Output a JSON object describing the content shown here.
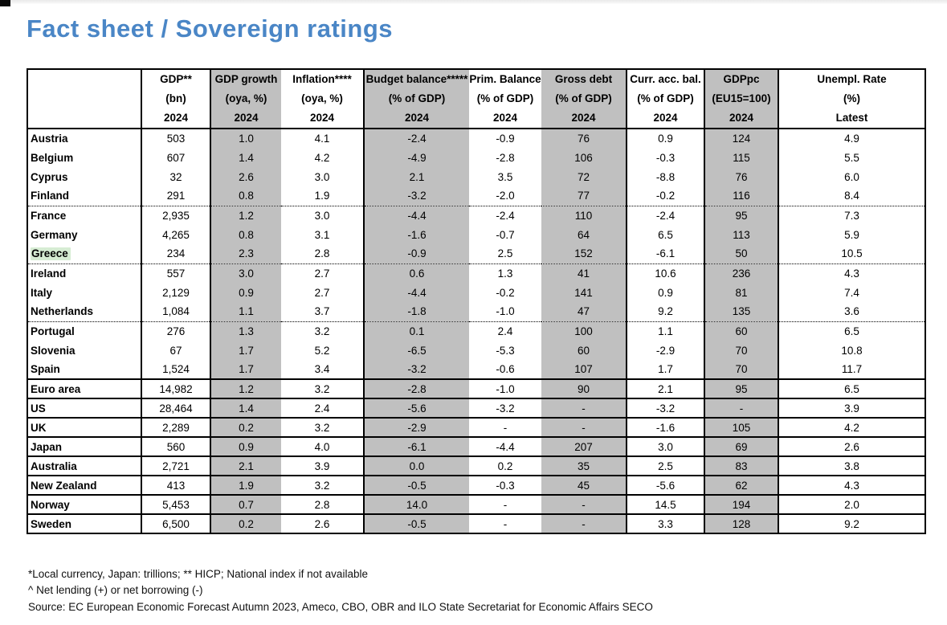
{
  "page": {
    "title": "Fact sheet / Sovereign ratings"
  },
  "colors": {
    "title_accent": "#4a86c6",
    "shaded_column": "#c0c0c0",
    "greece_highlight": "#d6ecd3"
  },
  "table": {
    "columns": [
      {
        "id": "country",
        "lines": [
          "",
          "",
          ""
        ],
        "shaded": false
      },
      {
        "id": "gdp",
        "lines": [
          "GDP**",
          "(bn)",
          "2024"
        ],
        "shaded": false
      },
      {
        "id": "gdp-growth",
        "lines": [
          "GDP growth",
          "(oya, %)",
          "2024"
        ],
        "shaded": true
      },
      {
        "id": "inflation",
        "lines": [
          "Inflation****",
          "(oya, %)",
          "2024"
        ],
        "shaded": false
      },
      {
        "id": "budget-balance",
        "lines": [
          "Budget balance*****",
          "(% of GDP)",
          "2024"
        ],
        "shaded": true
      },
      {
        "id": "prim-balance",
        "lines": [
          "Prim. Balance",
          "(% of GDP)",
          "2024"
        ],
        "shaded": false
      },
      {
        "id": "gross-debt",
        "lines": [
          "Gross debt",
          "(% of GDP)",
          "2024"
        ],
        "shaded": true
      },
      {
        "id": "curr-acc-bal",
        "lines": [
          "Curr. acc. bal.",
          "(% of GDP)",
          "2024"
        ],
        "shaded": false
      },
      {
        "id": "gdppc",
        "lines": [
          "GDPpc",
          "(EU15=100)",
          "2024"
        ],
        "shaded": true
      },
      {
        "id": "unempl-rate",
        "lines": [
          "Unempl. Rate",
          "(%)",
          "Latest"
        ],
        "shaded": false
      }
    ],
    "rows": [
      {
        "country": "Austria",
        "values": [
          "503",
          "1.0",
          "4.1",
          "-2.4",
          "-0.9",
          "76",
          "0.9",
          "124",
          "4.9"
        ],
        "bottom_border": "none",
        "highlight": false
      },
      {
        "country": "Belgium",
        "values": [
          "607",
          "1.4",
          "4.2",
          "-4.9",
          "-2.8",
          "106",
          "-0.3",
          "115",
          "5.5"
        ],
        "bottom_border": "none",
        "highlight": false
      },
      {
        "country": "Cyprus",
        "values": [
          "32",
          "2.6",
          "3.0",
          "2.1",
          "3.5",
          "72",
          "-8.8",
          "76",
          "6.0"
        ],
        "bottom_border": "none",
        "highlight": false
      },
      {
        "country": "Finland",
        "values": [
          "291",
          "0.8",
          "1.9",
          "-3.2",
          "-2.0",
          "77",
          "-0.2",
          "116",
          "8.4"
        ],
        "bottom_border": "dotted",
        "highlight": false
      },
      {
        "country": "France",
        "values": [
          "2,935",
          "1.2",
          "3.0",
          "-4.4",
          "-2.4",
          "110",
          "-2.4",
          "95",
          "7.3"
        ],
        "bottom_border": "none",
        "highlight": false
      },
      {
        "country": "Germany",
        "values": [
          "4,265",
          "0.8",
          "3.1",
          "-1.6",
          "-0.7",
          "64",
          "6.5",
          "113",
          "5.9"
        ],
        "bottom_border": "none",
        "highlight": false
      },
      {
        "country": "Greece",
        "values": [
          "234",
          "2.3",
          "2.8",
          "-0.9",
          "2.5",
          "152",
          "-6.1",
          "50",
          "10.5"
        ],
        "bottom_border": "dotted",
        "highlight": true
      },
      {
        "country": "Ireland",
        "values": [
          "557",
          "3.0",
          "2.7",
          "0.6",
          "1.3",
          "41",
          "10.6",
          "236",
          "4.3"
        ],
        "bottom_border": "none",
        "highlight": false
      },
      {
        "country": "Italy",
        "values": [
          "2,129",
          "0.9",
          "2.7",
          "-4.4",
          "-0.2",
          "141",
          "0.9",
          "81",
          "7.4"
        ],
        "bottom_border": "none",
        "highlight": false
      },
      {
        "country": "Netherlands",
        "values": [
          "1,084",
          "1.1",
          "3.7",
          "-1.8",
          "-1.0",
          "47",
          "9.2",
          "135",
          "3.6"
        ],
        "bottom_border": "dotted",
        "highlight": false
      },
      {
        "country": "Portugal",
        "values": [
          "276",
          "1.3",
          "3.2",
          "0.1",
          "2.4",
          "100",
          "1.1",
          "60",
          "6.5"
        ],
        "bottom_border": "none",
        "highlight": false
      },
      {
        "country": "Slovenia",
        "values": [
          "67",
          "1.7",
          "5.2",
          "-6.5",
          "-5.3",
          "60",
          "-2.9",
          "70",
          "10.8"
        ],
        "bottom_border": "none",
        "highlight": false
      },
      {
        "country": "Spain",
        "values": [
          "1,524",
          "1.7",
          "3.4",
          "-3.2",
          "-0.6",
          "107",
          "1.7",
          "70",
          "11.7"
        ],
        "bottom_border": "solid",
        "highlight": false
      },
      {
        "country": "Euro area",
        "values": [
          "14,982",
          "1.2",
          "3.2",
          "-2.8",
          "-1.0",
          "90",
          "2.1",
          "95",
          "6.5"
        ],
        "bottom_border": "solid",
        "highlight": false
      },
      {
        "country": "US",
        "values": [
          "28,464",
          "1.4",
          "2.4",
          "-5.6",
          "-3.2",
          "-",
          "-3.2",
          "-",
          "3.9"
        ],
        "bottom_border": "solid",
        "highlight": false
      },
      {
        "country": "UK",
        "values": [
          "2,289",
          "0.2",
          "3.2",
          "-2.9",
          "-",
          "-",
          "-1.6",
          "105",
          "4.2"
        ],
        "bottom_border": "solid",
        "highlight": false
      },
      {
        "country": "Japan",
        "values": [
          "560",
          "0.9",
          "4.0",
          "-6.1",
          "-4.4",
          "207",
          "3.0",
          "69",
          "2.6"
        ],
        "bottom_border": "solid",
        "highlight": false
      },
      {
        "country": "Australia",
        "values": [
          "2,721",
          "2.1",
          "3.9",
          "0.0",
          "0.2",
          "35",
          "2.5",
          "83",
          "3.8"
        ],
        "bottom_border": "solid",
        "highlight": false
      },
      {
        "country": "New Zealand",
        "values": [
          "413",
          "1.9",
          "3.2",
          "-0.5",
          "-0.3",
          "45",
          "-5.6",
          "62",
          "4.3"
        ],
        "bottom_border": "solid",
        "highlight": false
      },
      {
        "country": "Norway",
        "values": [
          "5,453",
          "0.7",
          "2.8",
          "14.0",
          "-",
          "-",
          "14.5",
          "194",
          "2.0"
        ],
        "bottom_border": "solid",
        "highlight": false
      },
      {
        "country": "Sweden",
        "values": [
          "6,500",
          "0.2",
          "2.6",
          "-0.5",
          "-",
          "-",
          "3.3",
          "128",
          "9.2"
        ],
        "bottom_border": "solid",
        "highlight": false
      }
    ]
  },
  "footnotes": [
    "*Local currency, Japan: trillions; ** HICP; National index if not available",
    "^ Net lending (+) or net borrowing (-)",
    "Source: EC European Economic Forecast Autumn 2023, Ameco, CBO, OBR and ILO State Secretariat for Economic Affairs SECO"
  ]
}
